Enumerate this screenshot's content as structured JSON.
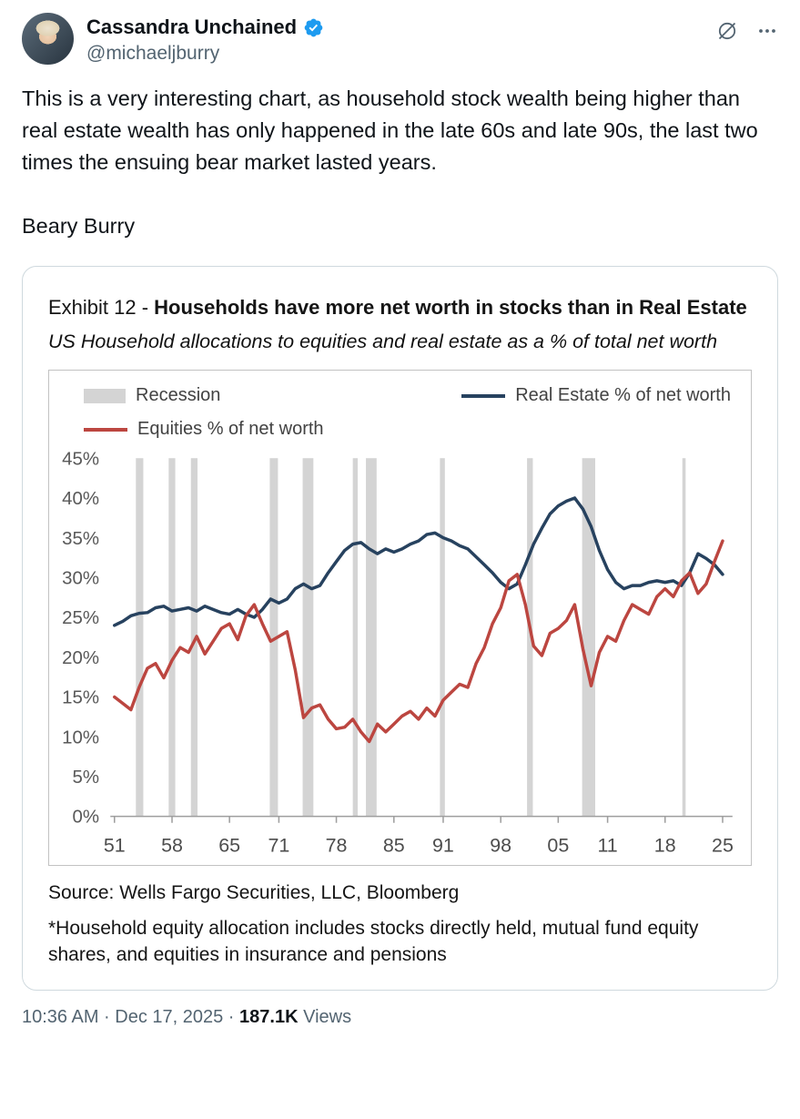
{
  "colors": {
    "accent_blue": "#1d9bf0",
    "text_primary": "#0f1419",
    "text_secondary": "#536471",
    "navy": "#27425f",
    "red": "#bc4640",
    "recession_gray": "#d4d4d4"
  },
  "header": {
    "display_name": "Cassandra Unchained",
    "handle": "@michaeljburry",
    "icons": {
      "verified": "verified-badge",
      "grok": "circle-slash",
      "more": "ellipsis"
    }
  },
  "tweet": {
    "paragraphs": [
      "This is a very interesting chart, as household stock wealth being higher than real estate wealth has only happened in the late 60s and late 90s, the last two times the ensuing bear market lasted years.",
      "Beary Burry"
    ]
  },
  "exhibit": {
    "title_prefix": "Exhibit 12 - ",
    "title_bold": "Households have more net worth in stocks than in Real Estate",
    "subtitle": "US Household allocations to equities and real estate as a % of total net worth",
    "source": "Source: Wells Fargo Securities, LLC, Bloomberg",
    "footnote": "*Household equity allocation includes stocks directly held, mutual fund equity shares, and equities in insurance and pensions"
  },
  "chart_data": {
    "type": "line",
    "title": "US Household allocations to equities and real estate as a % of total net worth",
    "xlabel": "",
    "ylabel": "",
    "xlim": [
      1950.5,
      2026.2
    ],
    "ylim": [
      0,
      45
    ],
    "grid": false,
    "legend_position": "top",
    "recession_color": "#d4d4d4",
    "legend": [
      {
        "label": "Recession",
        "color": "#d4d4d4",
        "swatch": "rect"
      },
      {
        "label": "Real Estate % of net worth",
        "color": "#27425f",
        "swatch": "line"
      },
      {
        "label": "Equities % of net worth",
        "color": "#bc4640",
        "swatch": "line"
      }
    ],
    "x": [
      1951,
      1952,
      1953,
      1954,
      1955,
      1956,
      1957,
      1958,
      1959,
      1960,
      1961,
      1962,
      1963,
      1964,
      1965,
      1966,
      1967,
      1968,
      1969,
      1970,
      1971,
      1972,
      1973,
      1974,
      1975,
      1976,
      1977,
      1978,
      1979,
      1980,
      1981,
      1982,
      1983,
      1984,
      1985,
      1986,
      1987,
      1988,
      1989,
      1990,
      1991,
      1992,
      1993,
      1994,
      1995,
      1996,
      1997,
      1998,
      1999,
      2000,
      2001,
      2002,
      2003,
      2004,
      2005,
      2006,
      2007,
      2008,
      2009,
      2010,
      2011,
      2012,
      2013,
      2014,
      2015,
      2016,
      2017,
      2018,
      2019,
      2020,
      2021,
      2022,
      2023,
      2024,
      2025
    ],
    "series": [
      {
        "name": "Real Estate % of net worth",
        "color": "#27425f",
        "values": [
          24.0,
          24.5,
          25.2,
          25.5,
          25.6,
          26.2,
          26.4,
          25.8,
          26.0,
          26.2,
          25.8,
          26.4,
          26.0,
          25.6,
          25.4,
          26.0,
          25.4,
          25.0,
          26.0,
          27.3,
          26.8,
          27.3,
          28.6,
          29.2,
          28.6,
          29.0,
          30.6,
          32.0,
          33.4,
          34.2,
          34.4,
          33.6,
          33.0,
          33.6,
          33.2,
          33.6,
          34.2,
          34.6,
          35.4,
          35.6,
          35.0,
          34.6,
          34.0,
          33.6,
          32.6,
          31.6,
          30.6,
          29.4,
          28.6,
          29.2,
          31.6,
          34.2,
          36.2,
          38.0,
          39.0,
          39.6,
          40.0,
          38.6,
          36.4,
          33.4,
          31.0,
          29.4,
          28.6,
          29.0,
          29.0,
          29.4,
          29.6,
          29.4,
          29.6,
          29.0,
          30.6,
          33.0,
          32.4,
          31.6,
          30.4
        ]
      },
      {
        "name": "Equities % of net worth",
        "color": "#bc4640",
        "values": [
          15.0,
          14.2,
          13.4,
          16.2,
          18.6,
          19.2,
          17.4,
          19.6,
          21.2,
          20.6,
          22.6,
          20.4,
          22.0,
          23.6,
          24.2,
          22.2,
          25.2,
          26.6,
          24.2,
          22.0,
          22.6,
          23.2,
          18.4,
          12.4,
          13.6,
          14.0,
          12.2,
          11.0,
          11.2,
          12.2,
          10.6,
          9.4,
          11.6,
          10.6,
          11.6,
          12.6,
          13.2,
          12.2,
          13.6,
          12.6,
          14.6,
          15.6,
          16.6,
          16.2,
          19.2,
          21.2,
          24.2,
          26.2,
          29.6,
          30.4,
          26.6,
          21.4,
          20.2,
          23.0,
          23.6,
          24.6,
          26.6,
          21.0,
          16.4,
          20.6,
          22.6,
          22.0,
          24.6,
          26.6,
          26.0,
          25.4,
          27.6,
          28.6,
          27.6,
          29.6,
          30.6,
          28.0,
          29.2,
          32.0,
          34.6
        ]
      }
    ],
    "recessions": [
      [
        1953.6,
        1954.5
      ],
      [
        1957.6,
        1958.4
      ],
      [
        1960.3,
        1961.1
      ],
      [
        1969.9,
        1970.9
      ],
      [
        1973.9,
        1975.2
      ],
      [
        1980.0,
        1980.6
      ],
      [
        1981.6,
        1982.9
      ],
      [
        1990.6,
        1991.2
      ],
      [
        2001.2,
        2001.9
      ],
      [
        2007.9,
        2009.5
      ],
      [
        2020.1,
        2020.5
      ]
    ],
    "x_ticks": [
      {
        "year": 1951,
        "label": "51"
      },
      {
        "year": 1958,
        "label": "58"
      },
      {
        "year": 1965,
        "label": "65"
      },
      {
        "year": 1971,
        "label": "71"
      },
      {
        "year": 1978,
        "label": "78"
      },
      {
        "year": 1985,
        "label": "85"
      },
      {
        "year": 1991,
        "label": "91"
      },
      {
        "year": 1998,
        "label": "98"
      },
      {
        "year": 2005,
        "label": "05"
      },
      {
        "year": 2011,
        "label": "11"
      },
      {
        "year": 2018,
        "label": "18"
      },
      {
        "year": 2025,
        "label": "25"
      }
    ],
    "y_ticks": [
      {
        "value": 45,
        "label": "45%"
      },
      {
        "value": 40,
        "label": "40%"
      },
      {
        "value": 35,
        "label": "35%"
      },
      {
        "value": 30,
        "label": "30%"
      },
      {
        "value": 25,
        "label": "25%"
      },
      {
        "value": 20,
        "label": "20%"
      },
      {
        "value": 15,
        "label": "15%"
      },
      {
        "value": 10,
        "label": "10%"
      },
      {
        "value": 5,
        "label": "5%"
      },
      {
        "value": 0,
        "label": "0%"
      }
    ]
  },
  "footer": {
    "meta_prefix": "10:36 AM · Dec 17, 2025 · ",
    "views_count": "187.1K",
    "views_label": " Views"
  }
}
